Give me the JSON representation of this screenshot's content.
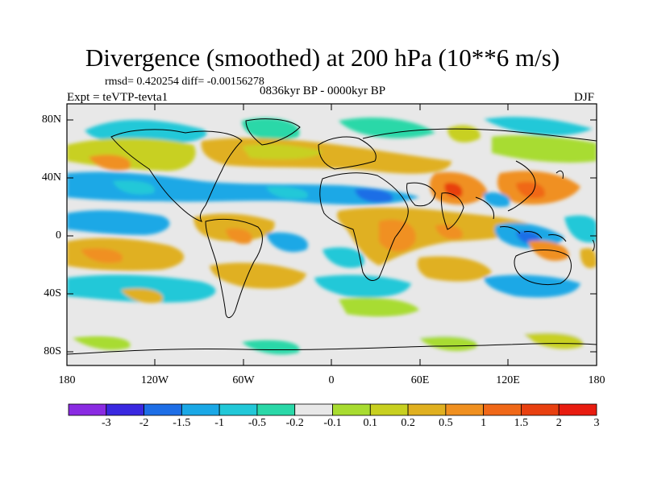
{
  "map": {
    "title": "Divergence (smoothed) at 200 hPa (10**6 m/s)",
    "stats": "rmsd= 0.420254 diff= -0.00156278",
    "period": "0836kyr BP - 0000kyr BP",
    "experiment": "Expt = teVTP-tevta1",
    "season": "DJF",
    "projection": "cylindrical-equidistant",
    "lat_ticks": [
      "80N",
      "40N",
      "0",
      "40S",
      "80S"
    ],
    "lon_ticks": [
      "180",
      "120W",
      "60W",
      "0",
      "60E",
      "120E",
      "180"
    ]
  },
  "legend": {
    "labels": [
      "-3",
      "-2",
      "-1.5",
      "-1",
      "-0.5",
      "-0.2",
      "-0.1",
      "0.1",
      "0.2",
      "0.5",
      "1",
      "1.5",
      "2",
      "3"
    ],
    "colors": [
      "#8a2be2",
      "#3a28e0",
      "#1e6ee6",
      "#1aa8e6",
      "#22c8d8",
      "#2ad8a8",
      "#e8e8e8",
      "#a8dc30",
      "#c8d020",
      "#e0b020",
      "#f09020",
      "#f06818",
      "#e84010",
      "#e81c10"
    ]
  }
}
